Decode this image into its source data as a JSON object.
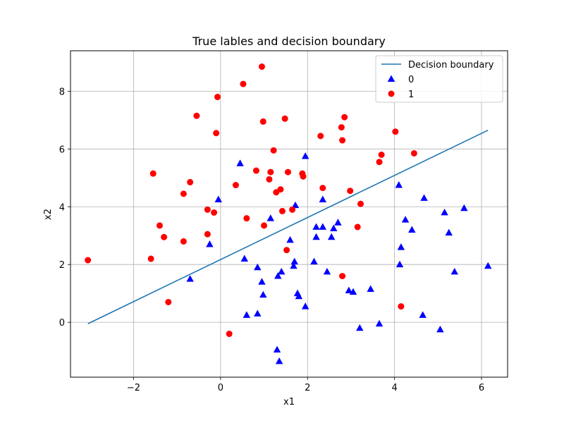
{
  "chart_data": {
    "type": "scatter",
    "title": "True lables and decision boundary",
    "xlabel": "x1",
    "ylabel": "x2",
    "xlim": [
      -3.45,
      6.6
    ],
    "ylim": [
      -1.9,
      9.4
    ],
    "xticks": [
      -2,
      0,
      2,
      4,
      6
    ],
    "yticks": [
      0,
      2,
      4,
      6,
      8
    ],
    "grid": true,
    "legend_position": "top-right",
    "colors": {
      "line": "#1f77b4",
      "class0": "#0000ff",
      "class1": "#ff0000"
    },
    "line": {
      "name": "Decision boundary",
      "x": [
        -3.05,
        6.15
      ],
      "y": [
        -0.05,
        6.65
      ]
    },
    "series": [
      {
        "name": "0",
        "marker": "triangle",
        "points": [
          [
            -0.7,
            1.5
          ],
          [
            -0.25,
            2.7
          ],
          [
            -0.05,
            4.25
          ],
          [
            0.45,
            5.5
          ],
          [
            0.55,
            2.2
          ],
          [
            0.6,
            0.25
          ],
          [
            0.85,
            1.9
          ],
          [
            0.85,
            0.3
          ],
          [
            0.95,
            1.4
          ],
          [
            0.98,
            0.95
          ],
          [
            1.15,
            3.6
          ],
          [
            1.3,
            -0.95
          ],
          [
            1.32,
            1.6
          ],
          [
            1.35,
            -1.35
          ],
          [
            1.4,
            1.75
          ],
          [
            1.6,
            2.85
          ],
          [
            1.68,
            1.95
          ],
          [
            1.7,
            2.1
          ],
          [
            1.72,
            4.05
          ],
          [
            1.77,
            1.0
          ],
          [
            1.8,
            0.9
          ],
          [
            1.95,
            0.55
          ],
          [
            1.95,
            5.75
          ],
          [
            2.15,
            2.1
          ],
          [
            2.2,
            3.3
          ],
          [
            2.2,
            2.95
          ],
          [
            2.35,
            3.3
          ],
          [
            2.35,
            4.25
          ],
          [
            2.45,
            1.75
          ],
          [
            2.55,
            2.95
          ],
          [
            2.6,
            3.25
          ],
          [
            2.7,
            3.45
          ],
          [
            2.95,
            1.1
          ],
          [
            3.05,
            1.05
          ],
          [
            3.2,
            -0.2
          ],
          [
            3.45,
            1.15
          ],
          [
            3.65,
            -0.05
          ],
          [
            4.1,
            4.75
          ],
          [
            4.12,
            2.0
          ],
          [
            4.15,
            2.6
          ],
          [
            4.25,
            3.55
          ],
          [
            4.4,
            3.2
          ],
          [
            4.65,
            0.25
          ],
          [
            4.68,
            4.3
          ],
          [
            5.05,
            -0.25
          ],
          [
            5.15,
            3.8
          ],
          [
            5.25,
            3.1
          ],
          [
            5.38,
            1.75
          ],
          [
            5.6,
            3.95
          ],
          [
            6.15,
            1.95
          ]
        ]
      },
      {
        "name": "1",
        "marker": "circle",
        "points": [
          [
            -3.05,
            2.15
          ],
          [
            -1.6,
            2.2
          ],
          [
            -1.55,
            5.15
          ],
          [
            -1.4,
            3.35
          ],
          [
            -1.3,
            2.95
          ],
          [
            -1.2,
            0.7
          ],
          [
            -0.85,
            4.45
          ],
          [
            -0.85,
            2.8
          ],
          [
            -0.7,
            4.85
          ],
          [
            -0.55,
            7.15
          ],
          [
            -0.3,
            3.9
          ],
          [
            -0.3,
            3.05
          ],
          [
            -0.15,
            3.8
          ],
          [
            -0.1,
            6.55
          ],
          [
            -0.07,
            7.8
          ],
          [
            0.2,
            -0.4
          ],
          [
            0.35,
            4.75
          ],
          [
            0.52,
            8.25
          ],
          [
            0.6,
            3.6
          ],
          [
            0.82,
            5.25
          ],
          [
            0.95,
            8.85
          ],
          [
            0.98,
            6.95
          ],
          [
            1.0,
            3.35
          ],
          [
            1.12,
            4.95
          ],
          [
            1.15,
            5.2
          ],
          [
            1.22,
            5.95
          ],
          [
            1.28,
            4.5
          ],
          [
            1.38,
            4.6
          ],
          [
            1.42,
            3.85
          ],
          [
            1.48,
            7.05
          ],
          [
            1.52,
            2.5
          ],
          [
            1.55,
            5.2
          ],
          [
            1.65,
            3.9
          ],
          [
            1.88,
            5.15
          ],
          [
            1.9,
            5.05
          ],
          [
            2.3,
            6.45
          ],
          [
            2.35,
            4.65
          ],
          [
            2.78,
            6.75
          ],
          [
            2.8,
            6.3
          ],
          [
            2.8,
            1.6
          ],
          [
            2.85,
            7.1
          ],
          [
            2.98,
            4.55
          ],
          [
            3.15,
            3.3
          ],
          [
            3.22,
            4.1
          ],
          [
            3.65,
            5.55
          ],
          [
            3.7,
            5.8
          ],
          [
            4.02,
            6.6
          ],
          [
            4.15,
            0.55
          ],
          [
            4.45,
            5.85
          ]
        ]
      }
    ]
  }
}
